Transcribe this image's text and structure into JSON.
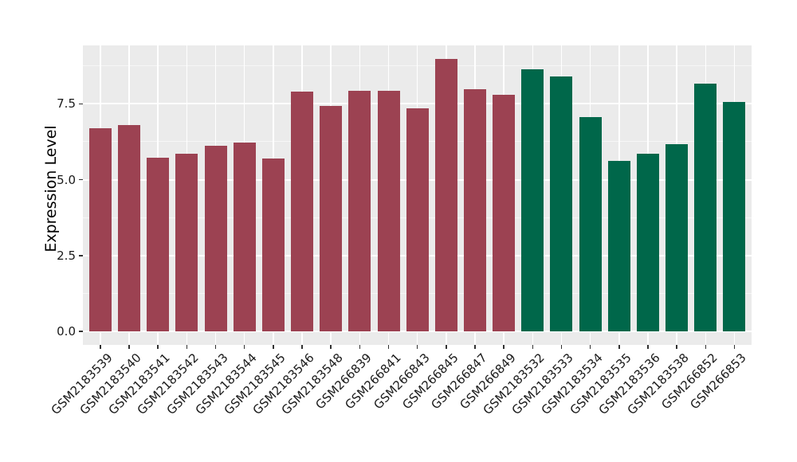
{
  "chart_data": {
    "type": "bar",
    "title": "",
    "xlabel": "",
    "ylabel": "Expression Level",
    "categories": [
      "GSM2183539",
      "GSM2183540",
      "GSM2183541",
      "GSM2183542",
      "GSM2183543",
      "GSM2183544",
      "GSM2183545",
      "GSM2183546",
      "GSM2183548",
      "GSM266839",
      "GSM266841",
      "GSM266843",
      "GSM266845",
      "GSM266847",
      "GSM266849",
      "GSM2183532",
      "GSM2183533",
      "GSM2183534",
      "GSM2183535",
      "GSM2183536",
      "GSM2183538",
      "GSM266852",
      "GSM266853"
    ],
    "series": [
      {
        "name": "Expression Level",
        "values": [
          6.7,
          6.81,
          5.73,
          5.86,
          6.12,
          6.21,
          5.7,
          7.9,
          7.44,
          7.93,
          7.93,
          7.35,
          8.98,
          7.99,
          7.8,
          8.64,
          8.4,
          7.07,
          5.62,
          5.84,
          6.17,
          8.16,
          7.56
        ]
      }
    ],
    "bar_group_index": [
      0,
      0,
      0,
      0,
      0,
      0,
      0,
      0,
      0,
      0,
      0,
      0,
      0,
      0,
      0,
      1,
      1,
      1,
      1,
      1,
      1,
      1,
      1
    ],
    "group_colors": [
      "#9C4252",
      "#00674A"
    ],
    "ylim": [
      -0.44,
      9.42
    ],
    "ytick_values": [
      0.0,
      2.5,
      5.0,
      7.5
    ],
    "ytick_labels": [
      "0.0",
      "2.5",
      "5.0",
      "7.5"
    ],
    "minor_ytick_values": [
      1.25,
      3.75,
      6.25,
      8.75
    ],
    "grid": "on",
    "legend_position": "none",
    "panel_bg": "#EBEBEB",
    "grid_major_color": "#FFFFFF",
    "grid_minor_color": "#F6F6F6",
    "tick_color": "#333333",
    "text_color": "#1A1A1A",
    "x_label_rotation_deg": 45
  }
}
